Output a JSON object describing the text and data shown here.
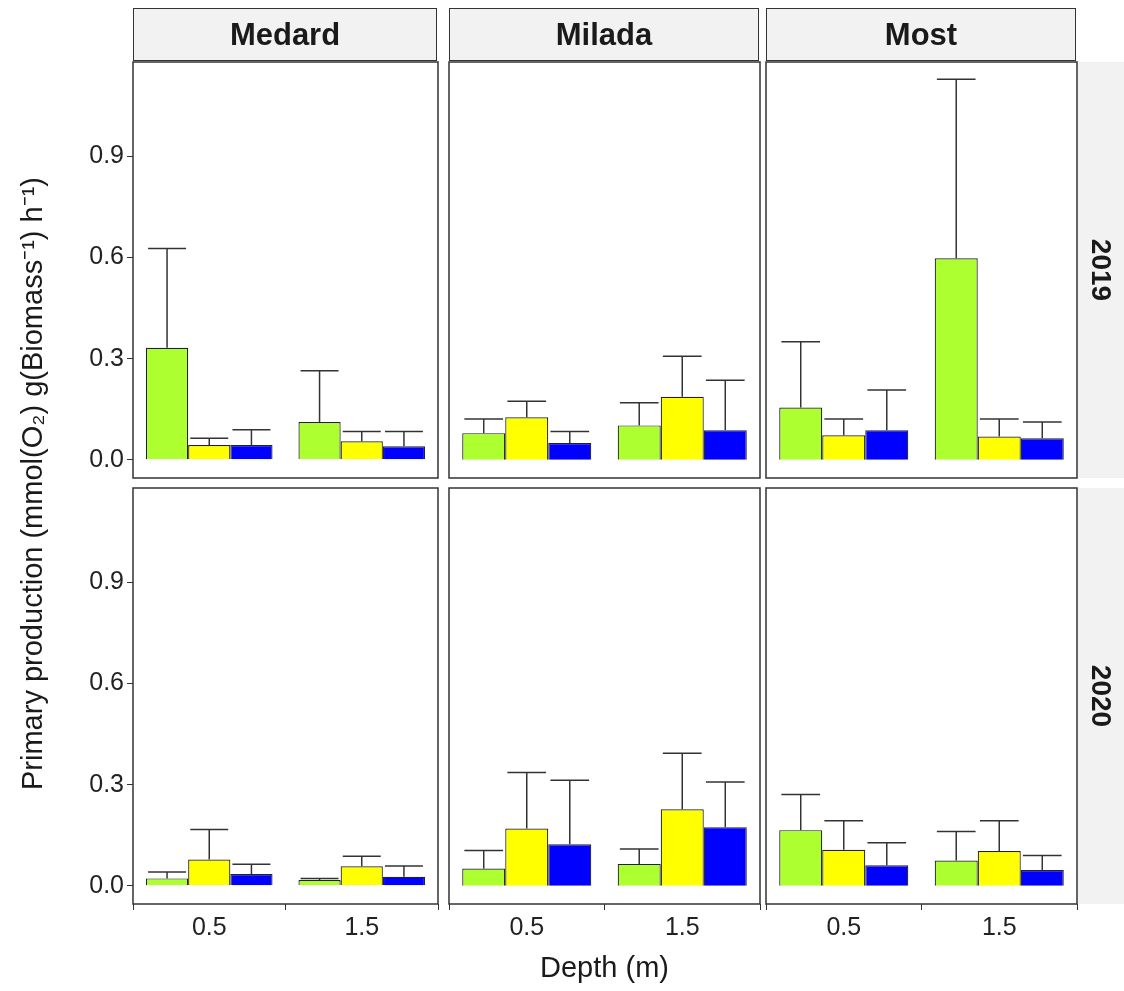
{
  "chart_data": [
    {
      "type": "bar",
      "title": "Medard",
      "ylabel": "Primary production (mmol(O₂) g(Biomass⁻¹) h⁻¹)",
      "categories": [
        "0.5",
        "1.5"
      ],
      "ylim": [
        -0.054,
        1.18
      ],
      "yticks": [
        {
          "value": 0,
          "label": "0.0"
        },
        0.3,
        0.6,
        0.9
      ],
      "tick_labels": "y",
      "series": [
        {
          "color": "#adff2f",
          "values": [
            0.332,
            0.112
          ],
          "errors": [
            [
              0.332,
              0.627
            ],
            [
              0.112,
              0.264
            ]
          ]
        },
        {
          "color": "#ffff00",
          "values": [
            0.044,
            0.055
          ],
          "errors": [
            [
              0.044,
              0.064
            ],
            [
              0.055,
              0.084
            ]
          ]
        },
        {
          "color": "#0000ff",
          "values": [
            0.044,
            0.04
          ],
          "errors": [
            [
              0.044,
              0.089
            ],
            [
              0.04,
              0.084
            ]
          ]
        }
      ]
    },
    {
      "type": "bar",
      "title": "Milada",
      "categories": [
        "0.5",
        "1.5"
      ],
      "ylim": [
        -0.054,
        1.18
      ],
      "tick_labels": false,
      "series": [
        {
          "color": "#adff2f",
          "values": [
            0.079,
            0.102
          ],
          "errors": [
            [
              0.079,
              0.121
            ],
            [
              0.102,
              0.169
            ]
          ]
        },
        {
          "color": "#ffff00",
          "values": [
            0.126,
            0.187
          ],
          "errors": [
            [
              0.126,
              0.174
            ],
            [
              0.187,
              0.307
            ]
          ]
        },
        {
          "color": "#0000ff",
          "values": [
            0.05,
            0.088
          ],
          "errors": [
            [
              0.05,
              0.084
            ],
            [
              0.088,
              0.236
            ]
          ]
        }
      ]
    },
    {
      "type": "bar",
      "title": "Most",
      "annotations": [
        "2019"
      ],
      "categories": [
        "0.5",
        "1.5"
      ],
      "ylim": [
        -0.054,
        1.18
      ],
      "tick_labels": false,
      "series": [
        {
          "color": "#adff2f",
          "values": [
            0.155,
            0.598
          ],
          "errors": [
            [
              0.155,
              0.35
            ],
            [
              0.598,
              1.129
            ]
          ]
        },
        {
          "color": "#ffff00",
          "values": [
            0.073,
            0.069
          ],
          "errors": [
            [
              0.073,
              0.121
            ],
            [
              0.069,
              0.121
            ]
          ]
        },
        {
          "color": "#0000ff",
          "values": [
            0.088,
            0.064
          ],
          "errors": [
            [
              0.088,
              0.207
            ],
            [
              0.064,
              0.112
            ]
          ]
        }
      ]
    },
    {
      "type": "bar",
      "categories": [
        "0.5",
        "1.5"
      ],
      "ylim": [
        -0.054,
        1.18
      ],
      "yticks": [
        {
          "value": 0,
          "label": "0.0"
        },
        0.3,
        0.6,
        0.9
      ],
      "series": [
        {
          "color": "#adff2f",
          "values": [
            0.022,
            0.017
          ],
          "errors": [
            [
              0.022,
              0.041
            ],
            [
              0.017,
              0.022
            ]
          ]
        },
        {
          "color": "#ffff00",
          "values": [
            0.078,
            0.058
          ],
          "errors": [
            [
              0.078,
              0.167
            ],
            [
              0.058,
              0.088
            ]
          ]
        },
        {
          "color": "#0000ff",
          "values": [
            0.035,
            0.027
          ],
          "errors": [
            [
              0.035,
              0.064
            ],
            [
              0.027,
              0.059
            ]
          ]
        }
      ]
    },
    {
      "type": "bar",
      "xlabel": "Depth (m)",
      "categories": [
        "0.5",
        "1.5"
      ],
      "ylim": [
        -0.054,
        1.18
      ],
      "tick_labels": "x",
      "series": [
        {
          "color": "#adff2f",
          "values": [
            0.051,
            0.065
          ],
          "errors": [
            [
              0.051,
              0.105
            ],
            [
              0.065,
              0.109
            ]
          ]
        },
        {
          "color": "#ffff00",
          "values": [
            0.17,
            0.227
          ],
          "errors": [
            [
              0.17,
              0.336
            ],
            [
              0.227,
              0.393
            ]
          ]
        },
        {
          "color": "#0000ff",
          "values": [
            0.123,
            0.174
          ],
          "errors": [
            [
              0.123,
              0.313
            ],
            [
              0.174,
              0.308
            ]
          ]
        }
      ]
    },
    {
      "type": "bar",
      "annotations": [
        "2020"
      ],
      "categories": [
        "0.5",
        "1.5"
      ],
      "ylim": [
        -0.054,
        1.18
      ],
      "tick_labels": "x",
      "series": [
        {
          "color": "#adff2f",
          "values": [
            0.165,
            0.075
          ],
          "errors": [
            [
              0.165,
              0.271
            ],
            [
              0.075,
              0.161
            ]
          ]
        },
        {
          "color": "#ffff00",
          "values": [
            0.107,
            0.103
          ],
          "errors": [
            [
              0.107,
              0.193
            ],
            [
              0.103,
              0.193
            ]
          ]
        },
        {
          "color": "#0000ff",
          "values": [
            0.061,
            0.047
          ],
          "errors": [
            [
              0.061,
              0.128
            ],
            [
              0.047,
              0.09
            ]
          ]
        }
      ]
    }
  ]
}
